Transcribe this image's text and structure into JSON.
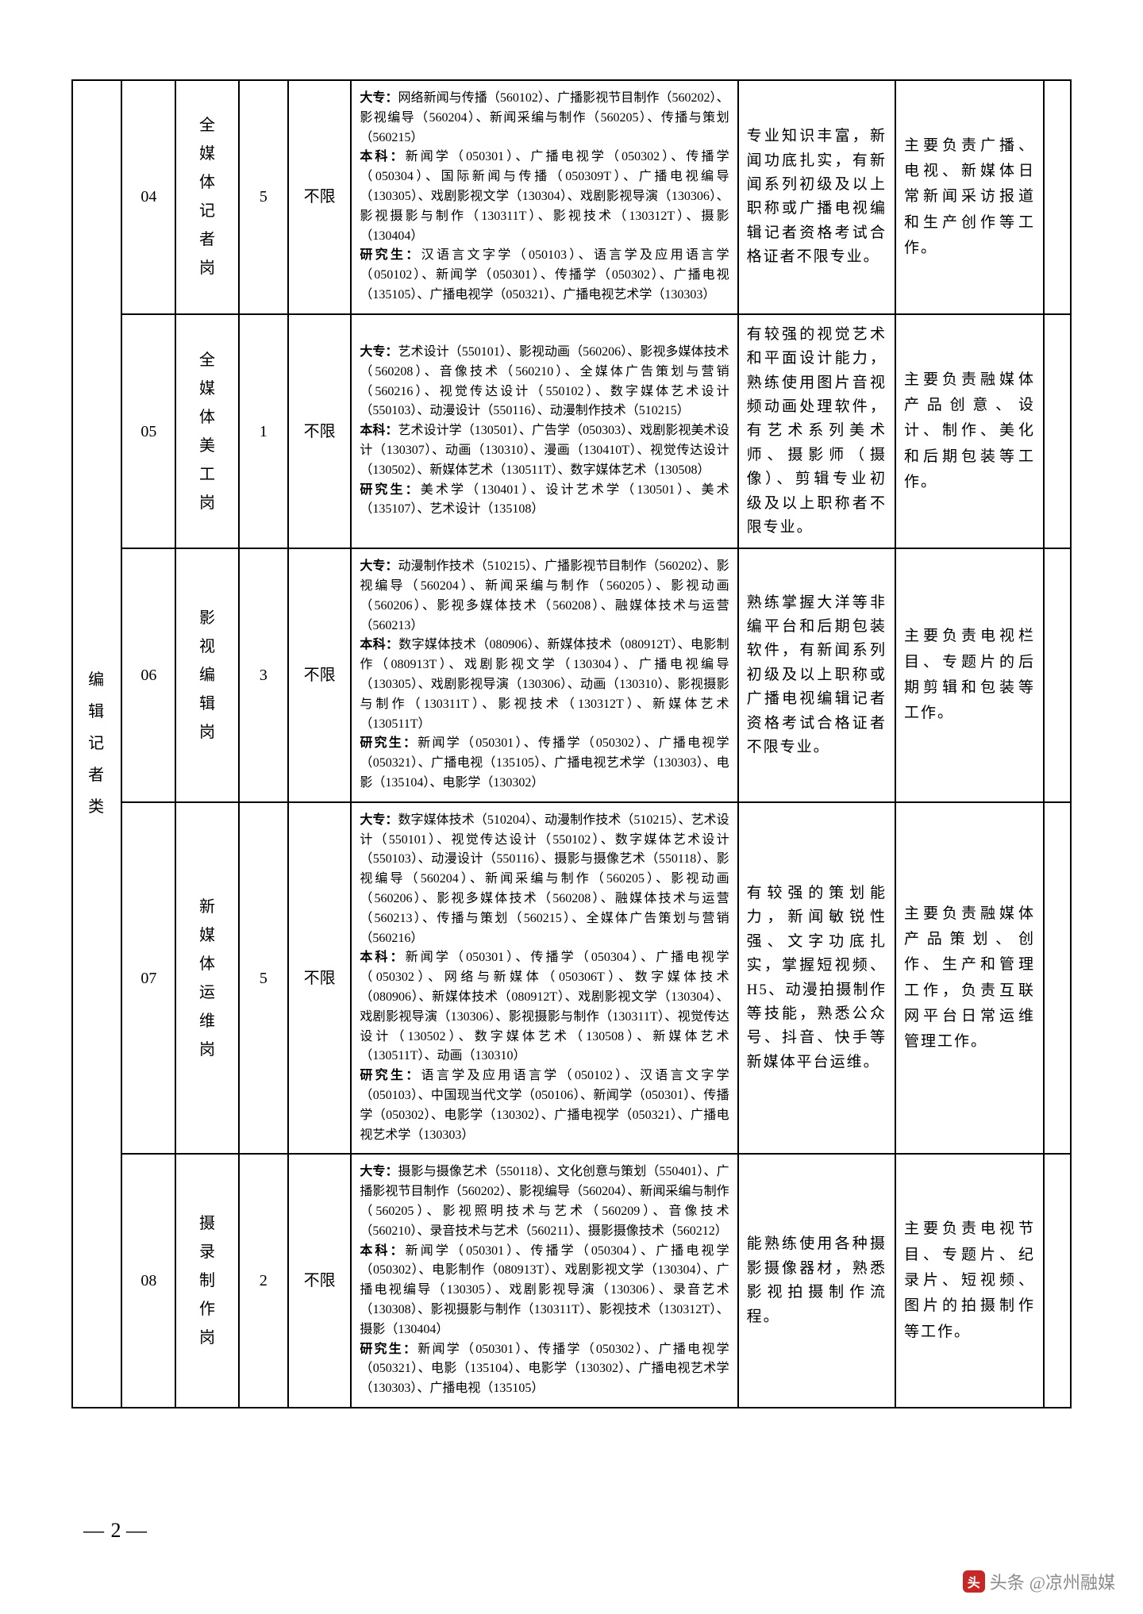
{
  "category_label": "编辑记者类",
  "page_number": "2",
  "watermark_prefix": "头条",
  "watermark_account": "@凉州融媒",
  "rows": [
    {
      "code": "04",
      "job": "全媒体记者岗",
      "count": "5",
      "limit": "不限",
      "major": "<span class='b'>大专：</span>网络新闻与传播（560102）、广播影视节目制作（560202）、影视编导（560204）、新闻采编与制作（560205）、传播与策划（560215）<br><span class='b'>本科：</span>新闻学（050301）、广播电视学（050302）、传播学（050304）、国际新闻与传播（050309T）、广播电视编导（130305）、戏剧影视文学（130304）、戏剧影视导演（130306）、影视摄影与制作（130311T）、影视技术（130312T）、摄影（130404）<br><span class='b'>研究生：</span>汉语言文字学（050103）、语言学及应用语言学（050102）、新闻学（050301）、传播学（050302）、广播电视（135105）、广播电视学（050321）、广播电视艺术学（130303）",
      "cond": "专业知识丰富，新闻功底扎实，有新闻系列初级及以上职称或广播电视编辑记者资格考试合格证者不限专业。",
      "duty": "主要负责广播、电视、新媒体日常新闻采访报道和生产创作等工作。"
    },
    {
      "code": "05",
      "job": "全媒体美工岗",
      "count": "1",
      "limit": "不限",
      "major": "<span class='b'>大专：</span>艺术设计（550101）、影视动画（560206）、影视多媒体技术（560208）、音像技术（560210）、全媒体广告策划与营销（560216）、视觉传达设计（550102）、数字媒体艺术设计（550103）、动漫设计（550116）、动漫制作技术（510215）<br><span class='b'>本科：</span>艺术设计学（130501）、广告学（050303）、戏剧影视美术设计（130307）、动画（130310）、漫画（130410T）、视觉传达设计（130502）、新媒体艺术（130511T）、数字媒体艺术（130508）<br><span class='b'>研究生：</span>美术学（130401）、设计艺术学（130501）、美术（135107）、艺术设计（135108）",
      "cond": "有较强的视觉艺术和平面设计能力，熟练使用图片音视频动画处理软件，有艺术系列美术师、摄影师（摄像）、剪辑专业初级及以上职称者不限专业。",
      "duty": "主要负责融媒体产品创意、设计、制作、美化和后期包装等工作。"
    },
    {
      "code": "06",
      "job": "影视编辑岗",
      "count": "3",
      "limit": "不限",
      "major": "<span class='b'>大专：</span>动漫制作技术（510215）、广播影视节目制作（560202）、影视编导（560204）、新闻采编与制作（560205）、影视动画（560206）、影视多媒体技术（560208）、融媒体技术与运营（560213）<br><span class='b'>本科：</span>数字媒体技术（080906）、新媒体技术（080912T）、电影制作（080913T）、戏剧影视文学（130304）、广播电视编导（130305）、戏剧影视导演（130306）、动画（130310）、影视摄影与制作（130311T）、影视技术（130312T）、新媒体艺术（130511T）<br><span class='b'>研究生：</span>新闻学（050301）、传播学（050302）、广播电视学（050321）、广播电视（135105）、广播电视艺术学（130303）、电影（135104）、电影学（130302）",
      "cond": "熟练掌握大洋等非编平台和后期包装软件，有新闻系列初级及以上职称或广播电视编辑记者资格考试合格证者不限专业。",
      "duty": "主要负责电视栏目、专题片的后期剪辑和包装等工作。"
    },
    {
      "code": "07",
      "job": "新媒体运维岗",
      "count": "5",
      "limit": "不限",
      "major": "<span class='b'>大专：</span>数字媒体技术（510204）、动漫制作技术（510215）、艺术设计（550101）、视觉传达设计（550102）、数字媒体艺术设计（550103）、动漫设计（550116）、摄影与摄像艺术（550118）、影视编导（560204）、新闻采编与制作（560205）、影视动画（560206）、影视多媒体技术（560208）、融媒体技术与运营（560213）、传播与策划（560215）、全媒体广告策划与营销（560216）<br><span class='b'>本科：</span>新闻学（050301）、传播学（050304）、广播电视学（050302）、网络与新媒体（050306T）、数字媒体技术（080906）、新媒体技术（080912T）、戏剧影视文学（130304）、戏剧影视导演（130306）、影视摄影与制作（130311T）、视觉传达设计（130502）、数字媒体艺术（130508）、新媒体艺术（130511T）、动画（130310）<br><span class='b'>研究生：</span>语言学及应用语言学（050102）、汉语言文字学（050103）、中国现当代文学（050106）、新闻学（050301）、传播学（050302）、电影学（130302）、广播电视学（050321）、广播电视艺术学（130303）",
      "cond": "有较强的策划能力，新闻敏锐性强、文字功底扎实，掌握短视频、H5、动漫拍摄制作等技能，熟悉公众号、抖音、快手等新媒体平台运维。",
      "duty": "主要负责融媒体产品策划、创作、生产和管理工作，负责互联网平台日常运维管理工作。"
    },
    {
      "code": "08",
      "job": "摄录制作岗",
      "count": "2",
      "limit": "不限",
      "major": "<span class='b'>大专：</span>摄影与摄像艺术（550118）、文化创意与策划（550401）、广播影视节目制作（560202）、影视编导（560204）、新闻采编与制作（560205）、影视照明技术与艺术（560209）、音像技术（560210）、录音技术与艺术（560211）、摄影摄像技术（560212）<br><span class='b'>本科：</span>新闻学（050301）、传播学（050304）、广播电视学（050302）、电影制作（080913T）、戏剧影视文学（130304）、广播电视编导（130305）、戏剧影视导演（130306）、录音艺术（130308）、影视摄影与制作（130311T）、影视技术（130312T）、摄影（130404）<br><span class='b'>研究生：</span>新闻学（050301）、传播学（050302）、广播电视学（050321）、电影（135104）、电影学（130302）、广播电视艺术学（130303）、广播电视（135105）",
      "cond": "能熟练使用各种摄影摄像器材，熟悉影视拍摄制作流程。",
      "duty": "主要负责电视节目、专题片、纪录片、短视频、图片的拍摄制作等工作。"
    }
  ]
}
